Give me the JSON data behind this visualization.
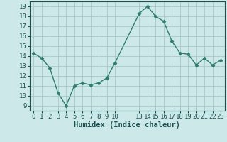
{
  "x": [
    0,
    1,
    2,
    3,
    4,
    5,
    6,
    7,
    8,
    9,
    10,
    13,
    14,
    15,
    16,
    17,
    18,
    19,
    20,
    21,
    22,
    23
  ],
  "y": [
    14.3,
    13.8,
    12.8,
    10.3,
    9.0,
    11.0,
    11.3,
    11.1,
    11.3,
    11.8,
    13.3,
    18.3,
    19.0,
    18.0,
    17.5,
    15.5,
    14.3,
    14.2,
    13.1,
    13.8,
    13.1,
    13.6
  ],
  "line_color": "#2e7d6e",
  "marker": "D",
  "marker_size": 2.5,
  "bg_color": "#cce8e8",
  "grid_color": "#a8c8c8",
  "xlabel": "Humidex (Indice chaleur)",
  "xlim": [
    -0.5,
    23.5
  ],
  "ylim": [
    8.5,
    19.5
  ],
  "yticks": [
    9,
    10,
    11,
    12,
    13,
    14,
    15,
    16,
    17,
    18,
    19
  ],
  "xtick_positions": [
    0,
    1,
    2,
    3,
    4,
    5,
    6,
    7,
    8,
    9,
    10,
    13,
    14,
    15,
    16,
    17,
    18,
    19,
    20,
    21,
    22,
    23
  ],
  "xtick_labels": [
    "0",
    "1",
    "2",
    "3",
    "4",
    "5",
    "6",
    "7",
    "8",
    "9",
    "10",
    "13",
    "14",
    "15",
    "16",
    "17",
    "18",
    "19",
    "20",
    "21",
    "22",
    "23"
  ],
  "tick_fontsize": 6.5,
  "label_fontsize": 7.5,
  "tick_color": "#1a5050",
  "label_color": "#1a5050"
}
